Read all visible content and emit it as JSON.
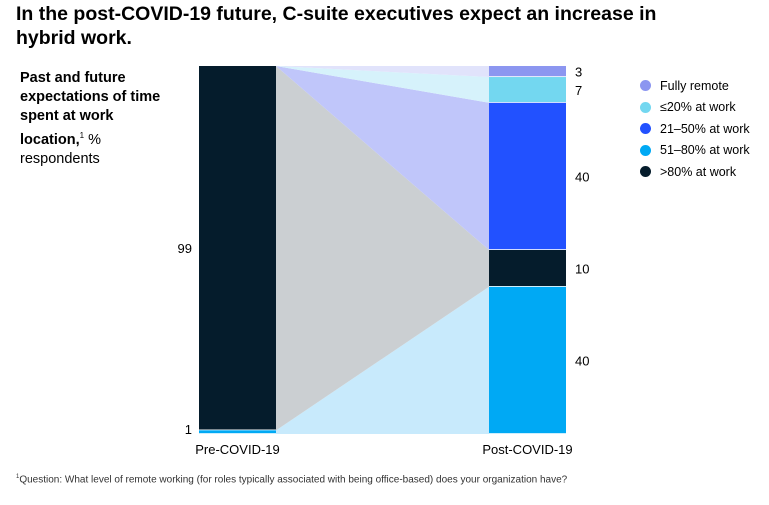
{
  "title": "In the post-COVID-19 future, C-suite executives expect an increase in hybrid work.",
  "subtitle": {
    "bold": "Past and future expectations of time spent at work location,",
    "sup": "1",
    "rest": " % respondents"
  },
  "footnote": {
    "sup": "1",
    "text": "Question: What level of remote working (for roles typically associated with being office-based) does your organization have?"
  },
  "chart_data": {
    "type": "bar",
    "subtype": "stacked-100-with-flows",
    "categories": [
      "Pre-COVID-19",
      "Post-COVID-19"
    ],
    "series": [
      {
        "name": "51–80% at work",
        "color": "#00a9f4",
        "flow_color": "#c8eafc",
        "values": [
          1,
          40
        ]
      },
      {
        "name": ">80% at work",
        "color": "#051c2c",
        "flow_color": "#cbcfd2",
        "values": [
          99,
          10
        ]
      },
      {
        "name": "21–50% at work",
        "color": "#2251ff",
        "flow_color": "#c0c6fa",
        "values": [
          0,
          40
        ]
      },
      {
        "name": "≤20% at work",
        "color": "#73d7f0",
        "flow_color": "#d6f2fb",
        "values": [
          0,
          7
        ]
      },
      {
        "name": "Fully remote",
        "color": "#8c96f0",
        "flow_color": "#e1e3fb",
        "values": [
          0,
          3
        ]
      }
    ],
    "labels": {
      "pre": [
        "1",
        "99"
      ],
      "post": [
        "40",
        "10",
        "40",
        "7",
        "3"
      ]
    },
    "legend_order": [
      "Fully remote",
      "≤20% at work",
      "21–50% at work",
      "51–80% at work",
      ">80% at work"
    ]
  }
}
